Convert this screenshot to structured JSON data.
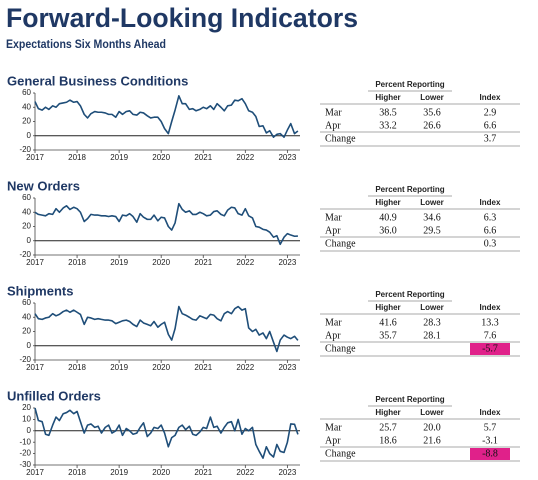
{
  "header": {
    "title": "Forward-Looking Indicators",
    "subtitle": "Expectations Six Months Ahead"
  },
  "chart_data": [
    {
      "type": "line",
      "title": "General Business Conditions",
      "color": "#1f4e79",
      "x": [
        2017,
        2017.08,
        2017.17,
        2017.25,
        2017.33,
        2017.42,
        2017.5,
        2017.58,
        2017.67,
        2017.75,
        2017.83,
        2017.92,
        2018,
        2018.08,
        2018.17,
        2018.25,
        2018.33,
        2018.42,
        2018.5,
        2018.58,
        2018.67,
        2018.75,
        2018.83,
        2018.92,
        2019,
        2019.08,
        2019.17,
        2019.25,
        2019.33,
        2019.42,
        2019.5,
        2019.58,
        2019.67,
        2019.75,
        2019.83,
        2019.92,
        2020,
        2020.08,
        2020.17,
        2020.25,
        2020.33,
        2020.42,
        2020.5,
        2020.58,
        2020.67,
        2020.75,
        2020.83,
        2020.92,
        2021,
        2021.08,
        2021.17,
        2021.25,
        2021.33,
        2021.42,
        2021.5,
        2021.58,
        2021.67,
        2021.75,
        2021.83,
        2021.92,
        2022,
        2022.08,
        2022.17,
        2022.25,
        2022.33,
        2022.42,
        2022.5,
        2022.58,
        2022.67,
        2022.75,
        2022.83,
        2022.92,
        2023,
        2023.08,
        2023.17,
        2023.25
      ],
      "values": [
        48,
        38,
        36,
        40,
        37,
        42,
        40,
        45,
        46,
        47,
        50,
        47,
        48,
        42,
        30,
        25,
        31,
        34,
        33,
        33,
        32,
        30,
        30,
        26,
        34,
        30,
        34,
        35,
        30,
        29,
        33,
        32,
        28,
        25,
        26,
        26,
        20,
        10,
        3,
        20,
        36,
        56,
        45,
        45,
        37,
        38,
        35,
        37,
        40,
        38,
        42,
        37,
        45,
        40,
        35,
        42,
        43,
        50,
        49,
        52,
        45,
        35,
        33,
        27,
        13,
        14,
        4,
        7,
        -2,
        2,
        3,
        -2,
        8,
        17,
        2.9,
        6.6
      ],
      "xlim": [
        2017,
        2023.3
      ],
      "xticks": [
        2017,
        2018,
        2019,
        2020,
        2021,
        2022,
        2023
      ],
      "ylim": [
        -20,
        60
      ],
      "yticks": [
        -20,
        0,
        20,
        40,
        60
      ],
      "grid": false
    },
    {
      "type": "line",
      "title": "New Orders",
      "color": "#1f4e79",
      "x": [
        2017,
        2017.08,
        2017.17,
        2017.25,
        2017.33,
        2017.42,
        2017.5,
        2017.58,
        2017.67,
        2017.75,
        2017.83,
        2017.92,
        2018,
        2018.08,
        2018.17,
        2018.25,
        2018.33,
        2018.42,
        2018.5,
        2018.58,
        2018.67,
        2018.75,
        2018.83,
        2018.92,
        2019,
        2019.08,
        2019.17,
        2019.25,
        2019.33,
        2019.42,
        2019.5,
        2019.58,
        2019.67,
        2019.75,
        2019.83,
        2019.92,
        2020,
        2020.08,
        2020.17,
        2020.25,
        2020.33,
        2020.42,
        2020.5,
        2020.58,
        2020.67,
        2020.75,
        2020.83,
        2020.92,
        2021,
        2021.08,
        2021.17,
        2021.25,
        2021.33,
        2021.42,
        2021.5,
        2021.58,
        2021.67,
        2021.75,
        2021.83,
        2021.92,
        2022,
        2022.08,
        2022.17,
        2022.25,
        2022.33,
        2022.42,
        2022.5,
        2022.58,
        2022.67,
        2022.75,
        2022.83,
        2022.92,
        2023,
        2023.08,
        2023.17,
        2023.25
      ],
      "values": [
        40,
        37,
        36,
        35,
        38,
        37,
        45,
        40,
        46,
        49,
        44,
        47,
        45,
        40,
        27,
        31,
        37,
        36,
        36,
        35,
        35,
        34,
        35,
        34,
        27,
        36,
        35,
        38,
        34,
        26,
        38,
        33,
        30,
        30,
        36,
        28,
        33,
        32,
        20,
        15,
        25,
        52,
        44,
        40,
        42,
        37,
        37,
        40,
        38,
        35,
        36,
        41,
        42,
        37,
        35,
        43,
        47,
        46,
        38,
        36,
        45,
        35,
        32,
        20,
        19,
        16,
        15,
        12,
        5,
        7,
        -5,
        5,
        10,
        8,
        6.3,
        6.6
      ],
      "xlim": [
        2017,
        2023.3
      ],
      "xticks": [
        2017,
        2018,
        2019,
        2020,
        2021,
        2022,
        2023
      ],
      "ylim": [
        -20,
        60
      ],
      "yticks": [
        -20,
        0,
        20,
        40,
        60
      ],
      "grid": false
    },
    {
      "type": "line",
      "title": "Shipments",
      "color": "#1f4e79",
      "x": [
        2017,
        2017.08,
        2017.17,
        2017.25,
        2017.33,
        2017.42,
        2017.5,
        2017.58,
        2017.67,
        2017.75,
        2017.83,
        2017.92,
        2018,
        2018.08,
        2018.17,
        2018.25,
        2018.33,
        2018.42,
        2018.5,
        2018.58,
        2018.67,
        2018.75,
        2018.83,
        2018.92,
        2019,
        2019.08,
        2019.17,
        2019.25,
        2019.33,
        2019.42,
        2019.5,
        2019.58,
        2019.67,
        2019.75,
        2019.83,
        2019.92,
        2020,
        2020.08,
        2020.17,
        2020.25,
        2020.33,
        2020.42,
        2020.5,
        2020.58,
        2020.67,
        2020.75,
        2020.83,
        2020.92,
        2021,
        2021.08,
        2021.17,
        2021.25,
        2021.33,
        2021.42,
        2021.5,
        2021.58,
        2021.67,
        2021.75,
        2021.83,
        2021.92,
        2022,
        2022.08,
        2022.17,
        2022.25,
        2022.33,
        2022.42,
        2022.5,
        2022.58,
        2022.67,
        2022.75,
        2022.83,
        2022.92,
        2023,
        2023.08,
        2023.17,
        2023.25
      ],
      "values": [
        45,
        38,
        37,
        39,
        40,
        45,
        42,
        44,
        48,
        50,
        47,
        50,
        47,
        44,
        30,
        40,
        39,
        37,
        38,
        37,
        36,
        36,
        35,
        31,
        33,
        35,
        36,
        34,
        30,
        27,
        36,
        32,
        30,
        28,
        34,
        26,
        30,
        33,
        16,
        8,
        24,
        55,
        45,
        43,
        40,
        37,
        36,
        42,
        40,
        38,
        44,
        43,
        38,
        35,
        45,
        48,
        45,
        52,
        55,
        50,
        52,
        25,
        20,
        23,
        15,
        18,
        10,
        20,
        5,
        -8,
        8,
        15,
        12,
        10,
        13.3,
        7.6
      ],
      "xlim": [
        2017,
        2023.3
      ],
      "xticks": [
        2017,
        2018,
        2019,
        2020,
        2021,
        2022,
        2023
      ],
      "ylim": [
        -20,
        60
      ],
      "yticks": [
        -20,
        0,
        20,
        40,
        60
      ],
      "grid": false
    },
    {
      "type": "line",
      "title": "Unfilled Orders",
      "color": "#1f4e79",
      "x": [
        2017,
        2017.08,
        2017.17,
        2017.25,
        2017.33,
        2017.42,
        2017.5,
        2017.58,
        2017.67,
        2017.75,
        2017.83,
        2017.92,
        2018,
        2018.08,
        2018.17,
        2018.25,
        2018.33,
        2018.42,
        2018.5,
        2018.58,
        2018.67,
        2018.75,
        2018.83,
        2018.92,
        2019,
        2019.08,
        2019.17,
        2019.25,
        2019.33,
        2019.42,
        2019.5,
        2019.58,
        2019.67,
        2019.75,
        2019.83,
        2019.92,
        2020,
        2020.08,
        2020.17,
        2020.25,
        2020.33,
        2020.42,
        2020.5,
        2020.58,
        2020.67,
        2020.75,
        2020.83,
        2020.92,
        2021,
        2021.08,
        2021.17,
        2021.25,
        2021.33,
        2021.42,
        2021.5,
        2021.58,
        2021.67,
        2021.75,
        2021.83,
        2021.92,
        2022,
        2022.08,
        2022.17,
        2022.25,
        2022.33,
        2022.42,
        2022.5,
        2022.58,
        2022.67,
        2022.75,
        2022.83,
        2022.92,
        2023,
        2023.08,
        2023.17,
        2023.25
      ],
      "values": [
        20,
        9,
        8,
        -3,
        -4,
        5,
        12,
        9,
        15,
        16,
        18,
        15,
        17,
        8,
        -2,
        5,
        6,
        3,
        4,
        -2,
        3,
        5,
        -2,
        0,
        5,
        -4,
        2,
        0,
        -3,
        -2,
        3,
        7,
        -5,
        -2,
        3,
        2,
        5,
        -2,
        -14,
        -6,
        -4,
        3,
        5,
        1,
        4,
        -3,
        -4,
        -1,
        3,
        2,
        12,
        3,
        4,
        -2,
        3,
        7,
        8,
        0,
        10,
        -3,
        2,
        0,
        3,
        -12,
        -18,
        -24,
        -14,
        -20,
        -23,
        -12,
        -18,
        -19,
        -10,
        6,
        5.7,
        -3.1
      ],
      "xlim": [
        2017,
        2023.3
      ],
      "xticks": [
        2017,
        2018,
        2019,
        2020,
        2021,
        2022,
        2023
      ],
      "ylim": [
        -30,
        20
      ],
      "yticks": [
        -30,
        -20,
        -10,
        0,
        10,
        20
      ],
      "grid": false
    }
  ],
  "tables": [
    {
      "group_header": "Percent Reporting",
      "columns": [
        "Higher",
        "Lower",
        "Index"
      ],
      "rows": [
        [
          "Mar",
          "38.5",
          "35.6",
          "2.9"
        ],
        [
          "Apr",
          "33.2",
          "26.6",
          "6.6"
        ]
      ],
      "change": [
        "Change",
        "3.7"
      ]
    },
    {
      "group_header": "Percent Reporting",
      "columns": [
        "Higher",
        "Lower",
        "Index"
      ],
      "rows": [
        [
          "Mar",
          "40.9",
          "34.6",
          "6.3"
        ],
        [
          "Apr",
          "36.0",
          "29.5",
          "6.6"
        ]
      ],
      "change": [
        "Change",
        "0.3"
      ]
    },
    {
      "group_header": "Percent Reporting",
      "columns": [
        "Higher",
        "Lower",
        "Index"
      ],
      "rows": [
        [
          "Mar",
          "41.6",
          "28.3",
          "13.3"
        ],
        [
          "Apr",
          "35.7",
          "28.1",
          "7.6"
        ]
      ],
      "change": [
        "Change",
        "-5.7"
      ],
      "change_color": "#e0218a"
    },
    {
      "group_header": "Percent Reporting",
      "columns": [
        "Higher",
        "Lower",
        "Index"
      ],
      "rows": [
        [
          "Mar",
          "25.7",
          "20.0",
          "5.7"
        ],
        [
          "Apr",
          "18.6",
          "21.6",
          "-3.1"
        ]
      ],
      "change": [
        "Change",
        "-8.8"
      ],
      "change_color": "#e0218a"
    }
  ]
}
